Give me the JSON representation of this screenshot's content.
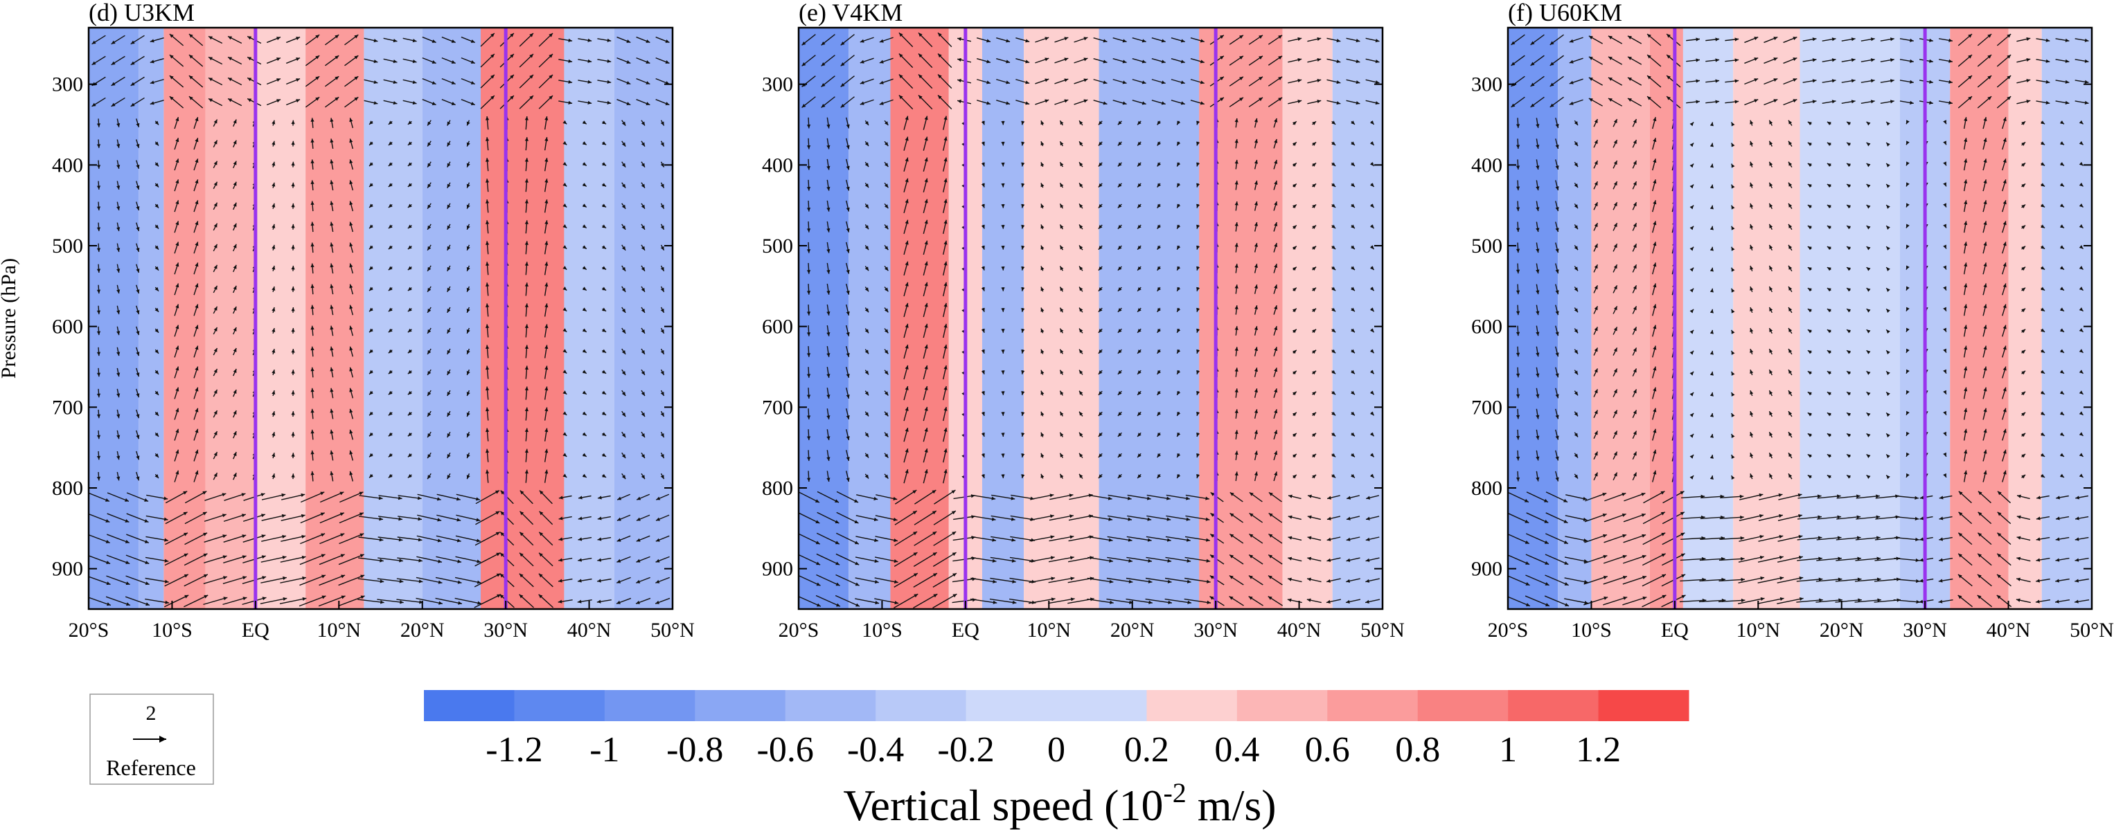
{
  "chart_data": {
    "type": "heatmap",
    "overlay": "wind vectors (meridional wind, vertical speed)",
    "shared": {
      "ylabel": "Pressure (hPa)",
      "yticks": [
        300,
        400,
        500,
        600,
        700,
        800,
        900
      ],
      "ylim": [
        230,
        950
      ],
      "y_inverted": true,
      "xticks": [
        {
          "value": -20,
          "label": "20°S"
        },
        {
          "value": -10,
          "label": "10°S"
        },
        {
          "value": 0,
          "label": "EQ"
        },
        {
          "value": 10,
          "label": "10°N"
        },
        {
          "value": 20,
          "label": "20°N"
        },
        {
          "value": 30,
          "label": "30°N"
        },
        {
          "value": 40,
          "label": "40°N"
        },
        {
          "value": 50,
          "label": "50°N"
        }
      ],
      "xlim": [
        -20,
        50
      ],
      "vertical_lines_lat": [
        0,
        30
      ],
      "vertical_line_color": "#9933ee"
    },
    "panels": [
      {
        "title": "(d) U3KM",
        "bands": [
          {
            "from": -20,
            "to": -14,
            "w": -0.55
          },
          {
            "from": -14,
            "to": -11,
            "w": -0.25
          },
          {
            "from": -11,
            "to": -6,
            "w": 0.75
          },
          {
            "from": -6,
            "to": 0,
            "w": 0.45
          },
          {
            "from": 0,
            "to": 6,
            "w": 0.35
          },
          {
            "from": 6,
            "to": 13,
            "w": 0.65
          },
          {
            "from": 13,
            "to": 20,
            "w": -0.2
          },
          {
            "from": 20,
            "to": 27,
            "w": -0.35
          },
          {
            "from": 27,
            "to": 37,
            "w": 0.85
          },
          {
            "from": 37,
            "to": 43,
            "w": -0.15
          },
          {
            "from": 43,
            "to": 50,
            "w": -0.35
          }
        ]
      },
      {
        "title": "(e) V4KM",
        "bands": [
          {
            "from": -20,
            "to": -14,
            "w": -0.7
          },
          {
            "from": -14,
            "to": -9,
            "w": -0.3
          },
          {
            "from": -9,
            "to": -2,
            "w": 0.9
          },
          {
            "from": -2,
            "to": 2,
            "w": 0.2
          },
          {
            "from": 2,
            "to": 7,
            "w": -0.25
          },
          {
            "from": 7,
            "to": 16,
            "w": 0.3
          },
          {
            "from": 16,
            "to": 28,
            "w": -0.25
          },
          {
            "from": 28,
            "to": 38,
            "w": 0.6
          },
          {
            "from": 38,
            "to": 44,
            "w": 0.2
          },
          {
            "from": 44,
            "to": 50,
            "w": -0.2
          }
        ]
      },
      {
        "title": "(f) U60KM",
        "bands": [
          {
            "from": -20,
            "to": -14,
            "w": -0.65
          },
          {
            "from": -14,
            "to": -10,
            "w": -0.3
          },
          {
            "from": -10,
            "to": -3,
            "w": 0.5
          },
          {
            "from": -3,
            "to": 1,
            "w": 0.75
          },
          {
            "from": 1,
            "to": 7,
            "w": 0.1
          },
          {
            "from": 7,
            "to": 15,
            "w": 0.35
          },
          {
            "from": 15,
            "to": 27,
            "w": 0.15
          },
          {
            "from": 27,
            "to": 33,
            "w": -0.15
          },
          {
            "from": 33,
            "to": 40,
            "w": 0.75
          },
          {
            "from": 40,
            "to": 44,
            "w": 0.2
          },
          {
            "from": 44,
            "to": 50,
            "w": -0.15
          }
        ]
      }
    ],
    "colorbar": {
      "label_main": "Vertical speed (10",
      "label_sup": "-2",
      "label_tail": " m/s)",
      "tick_labels": [
        "-1.2",
        "-1",
        "-0.8",
        "-0.6",
        "-0.4",
        "-0.2",
        "0",
        "0.2",
        "0.4",
        "0.6",
        "0.8",
        "1",
        "1.2"
      ],
      "colors": [
        "#4a79ee",
        "#5e88f0",
        "#7396f2",
        "#8aa7f4",
        "#a2b8f6",
        "#b8c9f8",
        "#cdd9fa",
        "#fdd0d0",
        "#fcb6b6",
        "#fb9c9c",
        "#f98282",
        "#f76868",
        "#f64848"
      ]
    },
    "reference_vector": {
      "value": "2",
      "label": "Reference"
    }
  }
}
